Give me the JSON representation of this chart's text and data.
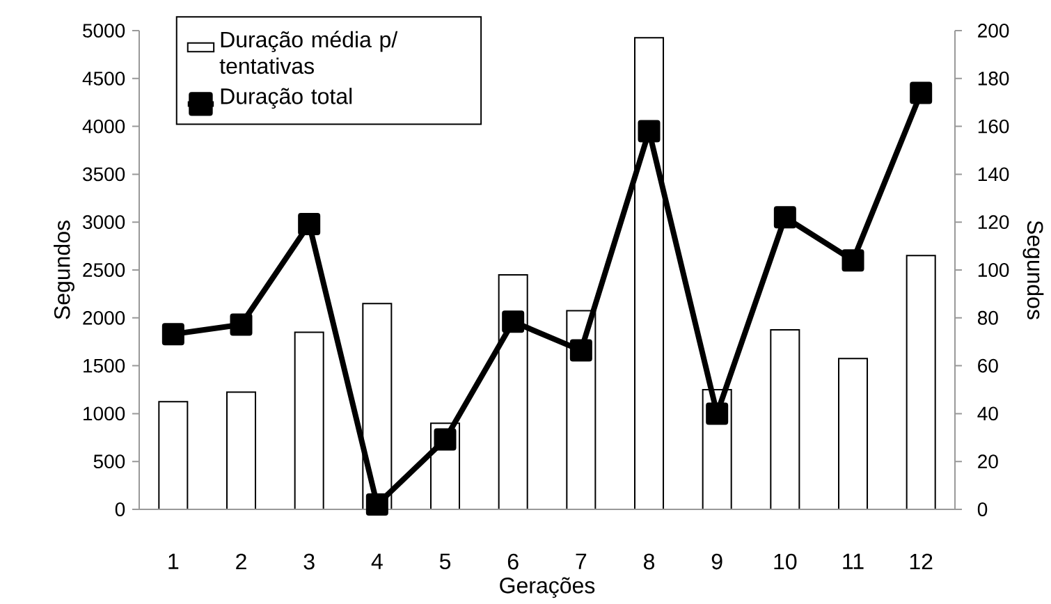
{
  "chart_data": {
    "type": "bar",
    "xlabel": "Gerações",
    "ylabel": "Segundos",
    "y2label": "Segundos",
    "categories": [
      "1",
      "2",
      "3",
      "4",
      "5",
      "6",
      "7",
      "8",
      "9",
      "10",
      "11",
      "12"
    ],
    "series": [
      {
        "name": "Duração média p/ tentativas",
        "axis": "y2",
        "color": "#ffffff",
        "values": [
          45,
          49,
          74,
          86,
          36,
          98,
          83,
          197,
          50,
          75,
          63,
          106
        ]
      },
      {
        "name": "Duração total",
        "type": "line",
        "color": "#000000",
        "values": [
          1830,
          1930,
          2980,
          50,
          730,
          1960,
          1660,
          3950,
          1000,
          3050,
          2600,
          4350
        ]
      }
    ],
    "ylim": [
      0,
      5000
    ],
    "yticks": [
      0,
      500,
      1000,
      1500,
      2000,
      2500,
      3000,
      3500,
      4000,
      4500,
      5000
    ],
    "y2lim": [
      0,
      200
    ],
    "y2ticks": [
      0,
      20,
      40,
      60,
      80,
      100,
      120,
      140,
      160,
      180,
      200
    ],
    "marker": "square",
    "legend": "top left"
  }
}
